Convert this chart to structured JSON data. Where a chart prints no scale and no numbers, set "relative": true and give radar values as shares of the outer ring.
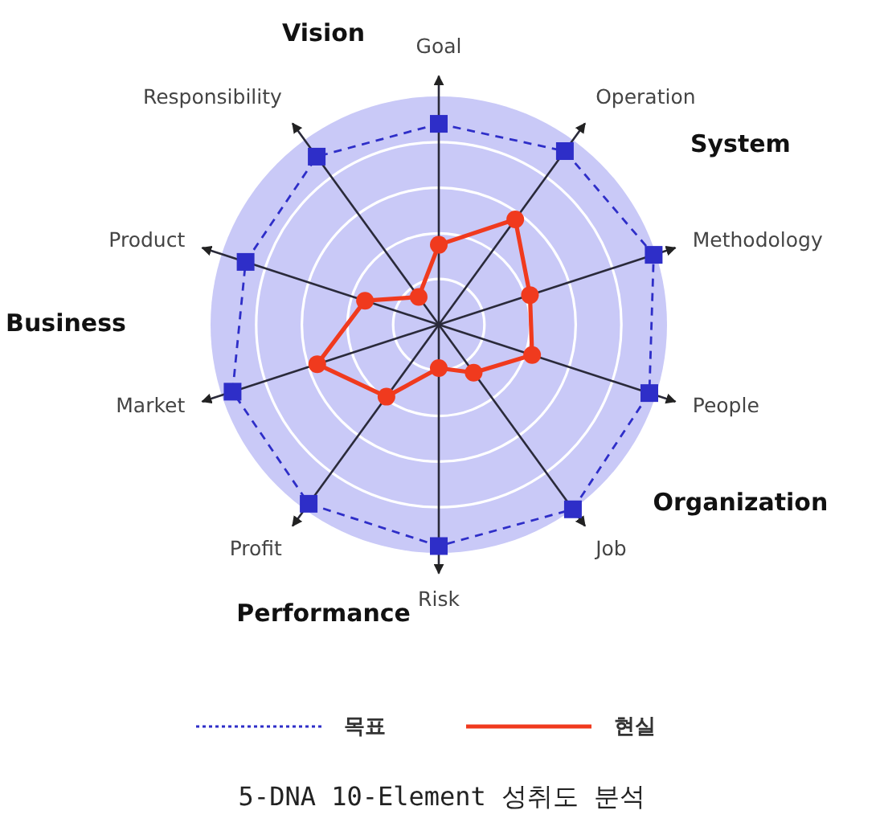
{
  "chart_data": {
    "type": "radar",
    "relative": true,
    "title": "5-DNA 10-Element 성취도 분석",
    "categories": [
      "Goal",
      "Operation",
      "Methodology",
      "People",
      "Job",
      "Risk",
      "Profit",
      "Market",
      "Product",
      "Responsibility"
    ],
    "series": [
      {
        "name": "목표",
        "color": "#2e2ec8",
        "values": [
          0.88,
          0.94,
          0.99,
          0.97,
          1,
          0.97,
          0.97,
          0.95,
          0.89,
          0.91
        ],
        "marker": "square",
        "line_style": "dashed"
      },
      {
        "name": "현실",
        "color": "#f03a1e",
        "values": [
          0.35,
          0.57,
          0.42,
          0.43,
          0.26,
          0.19,
          0.39,
          0.56,
          0.34,
          0.15
        ],
        "marker": "circle",
        "line_style": "solid"
      }
    ],
    "annotations": [
      "Vision",
      "System",
      "Organization",
      "Performance",
      "Business"
    ],
    "grid": true,
    "legend": "bottom"
  }
}
